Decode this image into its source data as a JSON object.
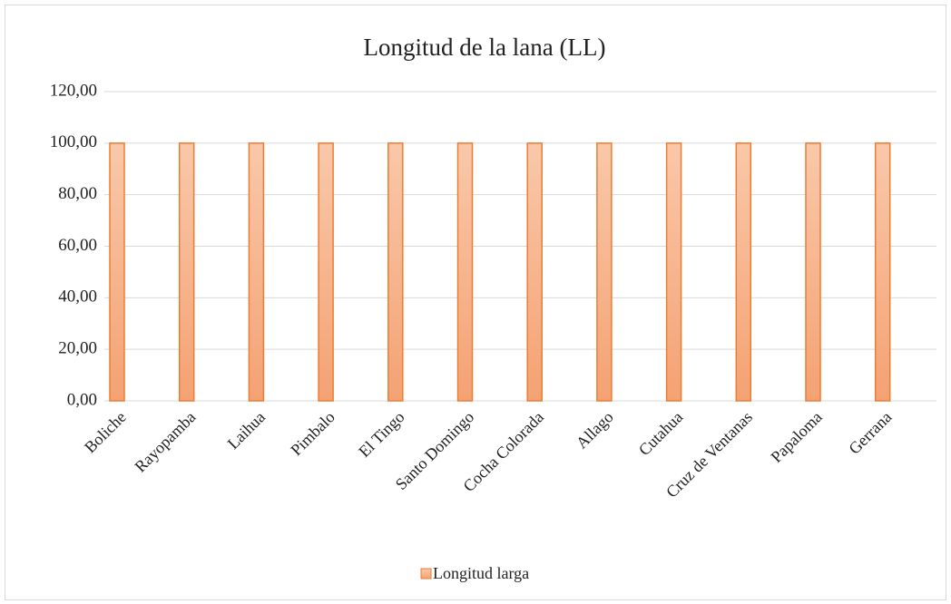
{
  "chart_data": {
    "type": "bar",
    "title": "Longitud de la lana (LL)",
    "categories": [
      "Boliche",
      "Rayopamba",
      "Laihua",
      "Pimbalo",
      "El Tingo",
      "Santo Domingo",
      "Cocha Colorada",
      "Allago",
      "Cutahua",
      "Cruz de Ventanas",
      "Papaloma",
      "Gerrana"
    ],
    "series": [
      {
        "name": "Longitud larga",
        "color": "#ed7d31",
        "values": [
          100,
          100,
          100,
          100,
          100,
          100,
          100,
          100,
          100,
          100,
          100,
          100
        ]
      }
    ],
    "ylim": [
      0,
      120
    ],
    "yticks": [
      {
        "value": 0,
        "label": "0,00"
      },
      {
        "value": 20,
        "label": "20,00"
      },
      {
        "value": 40,
        "label": "40,00"
      },
      {
        "value": 60,
        "label": "60,00"
      },
      {
        "value": 80,
        "label": "80,00"
      },
      {
        "value": 100,
        "label": "100,00"
      },
      {
        "value": 120,
        "label": "120,00"
      }
    ],
    "grid": true,
    "legend": "bottom"
  }
}
